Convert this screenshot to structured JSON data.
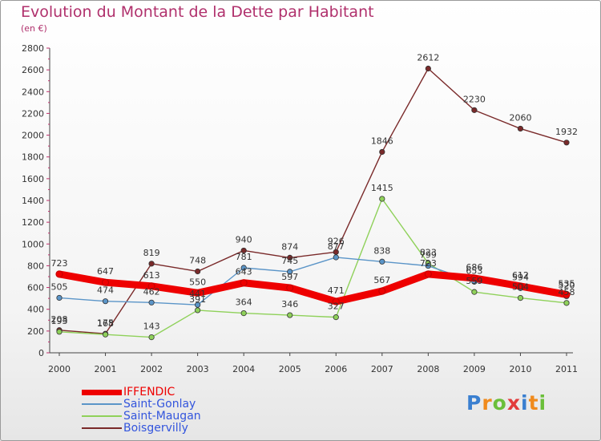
{
  "header": {
    "title": "Evolution du Montant de la Dette par Habitant",
    "subtitle": "(en €)"
  },
  "logo": {
    "text": "Proxiti",
    "letters": [
      "P",
      "r",
      "o",
      "x",
      "i",
      "t",
      "i"
    ],
    "colors": [
      "#3a7fd0",
      "#f08a1c",
      "#6bbf3a",
      "#e23b3b",
      "#3a7fd0",
      "#f08a1c",
      "#6bbf3a"
    ]
  },
  "chart_data": {
    "type": "line",
    "title": "Evolution du Montant de la Dette par Habitant",
    "subtitle": "(en €)",
    "xlabel": "",
    "ylabel": "",
    "x": [
      2000,
      2001,
      2002,
      2003,
      2004,
      2005,
      2006,
      2007,
      2008,
      2009,
      2010,
      2011
    ],
    "ylim": [
      0,
      2800
    ],
    "yticks": [
      0,
      200,
      400,
      600,
      800,
      1000,
      1200,
      1400,
      1600,
      1800,
      2000,
      2200,
      2400,
      2600,
      2800
    ],
    "grid": false,
    "legend": "bottom-left",
    "series": [
      {
        "name": "IFFENDIC",
        "color": "#ee0000",
        "values": [
          723,
          647,
          613,
          550,
          643,
          597,
          471,
          567,
          723,
          686,
          612,
          535
        ]
      },
      {
        "name": "Saint-Gonlay",
        "color": "#5b95c8",
        "values": [
          505,
          474,
          462,
          441,
          781,
          745,
          877,
          838,
          799,
          653,
          594,
          520
        ]
      },
      {
        "name": "Saint-Maugan",
        "color": "#8fd15a",
        "values": [
          193,
          168,
          143,
          391,
          364,
          346,
          327,
          1415,
          823,
          559,
          504,
          458
        ]
      },
      {
        "name": "Boisgervilly",
        "color": "#7a2a2a",
        "values": [
          208,
          175,
          819,
          748,
          940,
          874,
          926,
          1846,
          2612,
          2230,
          2060,
          1932
        ]
      }
    ],
    "data_labels": [
      [
        "723",
        "647",
        "613",
        "550",
        "643",
        "597",
        "471",
        "567",
        "723",
        "686",
        "612",
        "535"
      ],
      [
        "505",
        "474",
        "462",
        "441",
        "781",
        "745",
        "877",
        "838",
        "799",
        "653",
        "594",
        "520"
      ],
      [
        "193",
        "168",
        "143",
        "391",
        "364",
        "346",
        "327",
        "1415",
        "823",
        "559",
        "504",
        "458"
      ],
      [
        "208",
        "175",
        "819",
        "748",
        "940",
        "874",
        "926",
        "1846",
        "2612",
        "2230",
        "2060",
        "1932"
      ]
    ]
  }
}
